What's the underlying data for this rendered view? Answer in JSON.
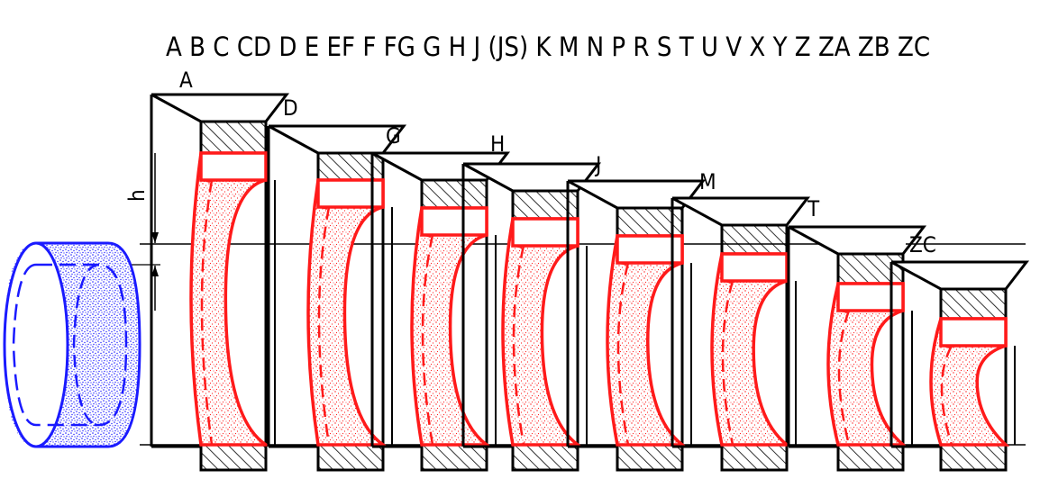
{
  "header_letters": "A B C CD D E EF F FG G H J (JS) K M N P R S T U V X Y Z ZA ZB ZC",
  "dimension_label": "h",
  "colors": {
    "shaft": "#1a1aff",
    "hole": "#ff1a1a",
    "block": "#000000",
    "hatch": "#000000",
    "background": "#ffffff"
  },
  "holes": [
    {
      "label": "A"
    },
    {
      "label": "D"
    },
    {
      "label": "G"
    },
    {
      "label": "H"
    },
    {
      "label": "J"
    },
    {
      "label": "M"
    },
    {
      "label": "T"
    },
    {
      "label": "ZC"
    }
  ]
}
